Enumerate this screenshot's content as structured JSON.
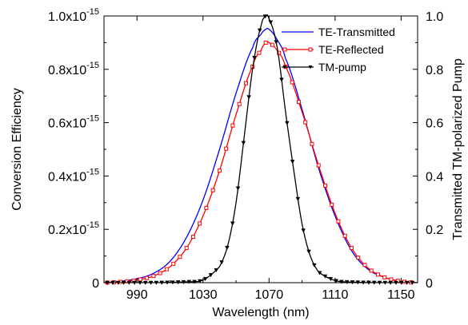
{
  "chart_data": {
    "type": "line",
    "title": "",
    "xlabel": "Wavelength (nm)",
    "ylabel_left": "Conversion Efficiency",
    "ylabel_right": "Transmitted TM-polarized Pump",
    "xlim": [
      970,
      1160
    ],
    "ylim_left": [
      0,
      1e-15
    ],
    "ylim_right": [
      0,
      1.0
    ],
    "grid": false,
    "legend_position": "top-right",
    "x_ticks": [
      990,
      1030,
      1070,
      1110,
      1150
    ],
    "x_tick_labels": [
      "990",
      "1030",
      "1070",
      "1110",
      "1150"
    ],
    "y_left_ticks": [
      0,
      2e-16,
      4e-16,
      6e-16,
      8e-16,
      1e-15
    ],
    "y_left_tick_labels": [
      {
        "base": "0",
        "exp": ""
      },
      {
        "base": "0.2x10",
        "exp": "-15"
      },
      {
        "base": "0.4x10",
        "exp": "-15"
      },
      {
        "base": "0.6x10",
        "exp": "-15"
      },
      {
        "base": "0.8x10",
        "exp": "-15"
      },
      {
        "base": "1.0x10",
        "exp": "-15"
      }
    ],
    "y_right_ticks": [
      0,
      0.2,
      0.4,
      0.6,
      0.8,
      1.0
    ],
    "y_right_tick_labels": [
      "0",
      "0.2",
      "0.4",
      "0.6",
      "0.8",
      "1.0"
    ],
    "series": [
      {
        "name": "TE-Transmitted",
        "axis": "left",
        "color": "#0000ff",
        "marker": "none",
        "x": [
          970,
          980,
          990,
          1000,
          1010,
          1020,
          1030,
          1040,
          1050,
          1060,
          1065,
          1068,
          1070,
          1075,
          1080,
          1090,
          1100,
          1110,
          1120,
          1130,
          1140,
          1150,
          1160
        ],
        "y": [
          0,
          5e-18,
          1.5e-17,
          3.5e-17,
          8e-17,
          1.7e-16,
          3.1e-16,
          5e-16,
          7.1e-16,
          8.8e-16,
          9.3e-16,
          9.5e-16,
          9.5e-16,
          9.1e-16,
          8.4e-16,
          6.5e-16,
          4.3e-16,
          2.5e-16,
          1.2e-16,
          5e-17,
          2e-17,
          5e-18,
          0
        ]
      },
      {
        "name": "TE-Reflected",
        "axis": "left",
        "color": "#ff0000",
        "marker": "square",
        "x": [
          970,
          980,
          990,
          1000,
          1010,
          1020,
          1030,
          1040,
          1050,
          1060,
          1065,
          1068,
          1070,
          1075,
          1080,
          1090,
          1100,
          1110,
          1120,
          1130,
          1140,
          1150,
          1160
        ],
        "y": [
          0,
          3e-18,
          1e-17,
          2.5e-17,
          6e-17,
          1.3e-16,
          2.5e-16,
          4.2e-16,
          6.3e-16,
          8.1e-16,
          8.7e-16,
          9e-16,
          9e-16,
          8.7e-16,
          8.1e-16,
          6.4e-16,
          4.4e-16,
          2.6e-16,
          1.3e-16,
          5.5e-17,
          2e-17,
          5e-18,
          0
        ]
      },
      {
        "name": "TM-pump",
        "axis": "right",
        "color": "#000000",
        "marker": "triangle-down",
        "x": [
          970,
          1000,
          1020,
          1030,
          1040,
          1045,
          1050,
          1055,
          1060,
          1065,
          1068,
          1070,
          1075,
          1080,
          1085,
          1090,
          1095,
          1100,
          1110,
          1120,
          1140,
          1160
        ],
        "y": [
          0,
          0,
          0.003,
          0.01,
          0.06,
          0.14,
          0.3,
          0.55,
          0.8,
          0.96,
          1.0,
          0.99,
          0.88,
          0.64,
          0.42,
          0.22,
          0.1,
          0.04,
          0.008,
          0.002,
          0,
          0
        ]
      }
    ]
  }
}
